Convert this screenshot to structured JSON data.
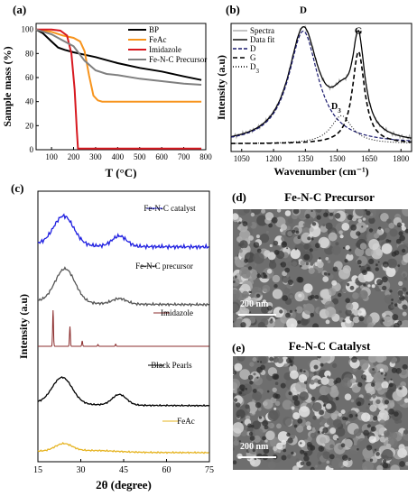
{
  "panels": {
    "a": {
      "label": "(a)"
    },
    "b": {
      "label": "(b)"
    },
    "c": {
      "label": "(c)"
    },
    "d": {
      "label": "(d)",
      "title": "Fe-N-C Precursor",
      "scale_text": "200 nm"
    },
    "e": {
      "label": "(e)",
      "title": "Fe-N-C Catalyst",
      "scale_text": "200 nm"
    }
  },
  "chart_data": [
    {
      "id": "a",
      "type": "line",
      "xlabel": "T (°C)",
      "ylabel": "Sample mass (%)",
      "xlim": [
        30,
        800
      ],
      "ylim": [
        0,
        105
      ],
      "xticks": [
        100,
        200,
        300,
        400,
        500,
        600,
        700,
        800
      ],
      "yticks": [
        0,
        20,
        40,
        60,
        80,
        100
      ],
      "legend_position": "top-right",
      "series": [
        {
          "name": "BP",
          "color": "#000000",
          "x": [
            30,
            60,
            100,
            130,
            160,
            200,
            250,
            300,
            400,
            500,
            600,
            700,
            780
          ],
          "y": [
            100,
            97,
            90,
            85,
            83,
            81,
            79,
            77,
            72,
            68,
            65,
            61,
            58
          ]
        },
        {
          "name": "FeAc",
          "color": "#f7941d",
          "x": [
            30,
            100,
            150,
            200,
            230,
            250,
            270,
            290,
            310,
            330,
            400,
            500,
            600,
            700,
            780
          ],
          "y": [
            100,
            98,
            95,
            93,
            90,
            82,
            62,
            45,
            41,
            40,
            40,
            40,
            40,
            40,
            40
          ]
        },
        {
          "name": "Imidazole",
          "color": "#d71920",
          "x": [
            30,
            100,
            140,
            170,
            190,
            205,
            215,
            220,
            230,
            300,
            400,
            500,
            600,
            700,
            780
          ],
          "y": [
            100,
            100,
            99,
            95,
            80,
            50,
            15,
            1,
            1,
            1,
            1,
            1,
            1,
            1,
            1
          ]
        },
        {
          "name": "Fe-N-C Precursor",
          "color": "#808080",
          "x": [
            30,
            100,
            150,
            200,
            250,
            300,
            350,
            400,
            500,
            600,
            700,
            780
          ],
          "y": [
            100,
            96,
            91,
            86,
            74,
            66,
            63,
            62,
            59,
            57,
            55,
            54
          ]
        }
      ]
    },
    {
      "id": "b",
      "type": "line",
      "xlabel": "Wavenumber (cm⁻¹)",
      "ylabel": "Intensity (a.u)",
      "xlim": [
        1000,
        1850
      ],
      "xticks": [
        1050,
        1200,
        1350,
        1500,
        1650,
        1800
      ],
      "legend_position": "top-right",
      "legend": [
        "Spectra",
        "Data fit",
        "D",
        "G",
        "D3"
      ],
      "annotations": [
        "D",
        "G",
        "D3"
      ],
      "peaks": [
        {
          "name": "D",
          "center": 1340,
          "height": 0.88,
          "width": 85
        },
        {
          "name": "G",
          "center": 1600,
          "height": 0.72,
          "width": 35
        },
        {
          "name": "D3",
          "center": 1520,
          "height": 0.22,
          "width": 60
        }
      ],
      "baseline": 0.06
    },
    {
      "id": "c",
      "type": "line",
      "xlabel": "2θ (degree)",
      "ylabel": "Intensity (a.u)",
      "xlim": [
        15,
        75
      ],
      "xticks": [
        15,
        30,
        45,
        60,
        75
      ],
      "series": [
        {
          "name": "Fe-N-C catalyst",
          "color": "#1f1fe0",
          "peaks": [
            [
              24,
              0.7,
              3.5
            ],
            [
              43.5,
              0.25,
              2.5
            ]
          ]
        },
        {
          "name": "Fe-N-C precursor",
          "color": "#555555",
          "peaks": [
            [
              24.5,
              0.75,
              3.5
            ],
            [
              43.5,
              0.12,
              2.5
            ]
          ]
        },
        {
          "name": "Imidazole",
          "color": "#8b2c2c",
          "peaks": [
            [
              20.3,
              1.0,
              0.15
            ],
            [
              26.2,
              0.55,
              0.15
            ],
            [
              30.5,
              0.15,
              0.15
            ],
            [
              36,
              0.05,
              0.15
            ],
            [
              42.2,
              0.06,
              0.15
            ]
          ]
        },
        {
          "name": "Black Pearls",
          "color": "#000000",
          "peaks": [
            [
              23.5,
              0.7,
              3.5
            ],
            [
              43.5,
              0.28,
              2.5
            ]
          ]
        },
        {
          "name": "FeAc",
          "color": "#e6b422",
          "peaks": [
            [
              24,
              0.38,
              3
            ],
            [
              35,
              0.08,
              8
            ]
          ]
        }
      ]
    }
  ]
}
